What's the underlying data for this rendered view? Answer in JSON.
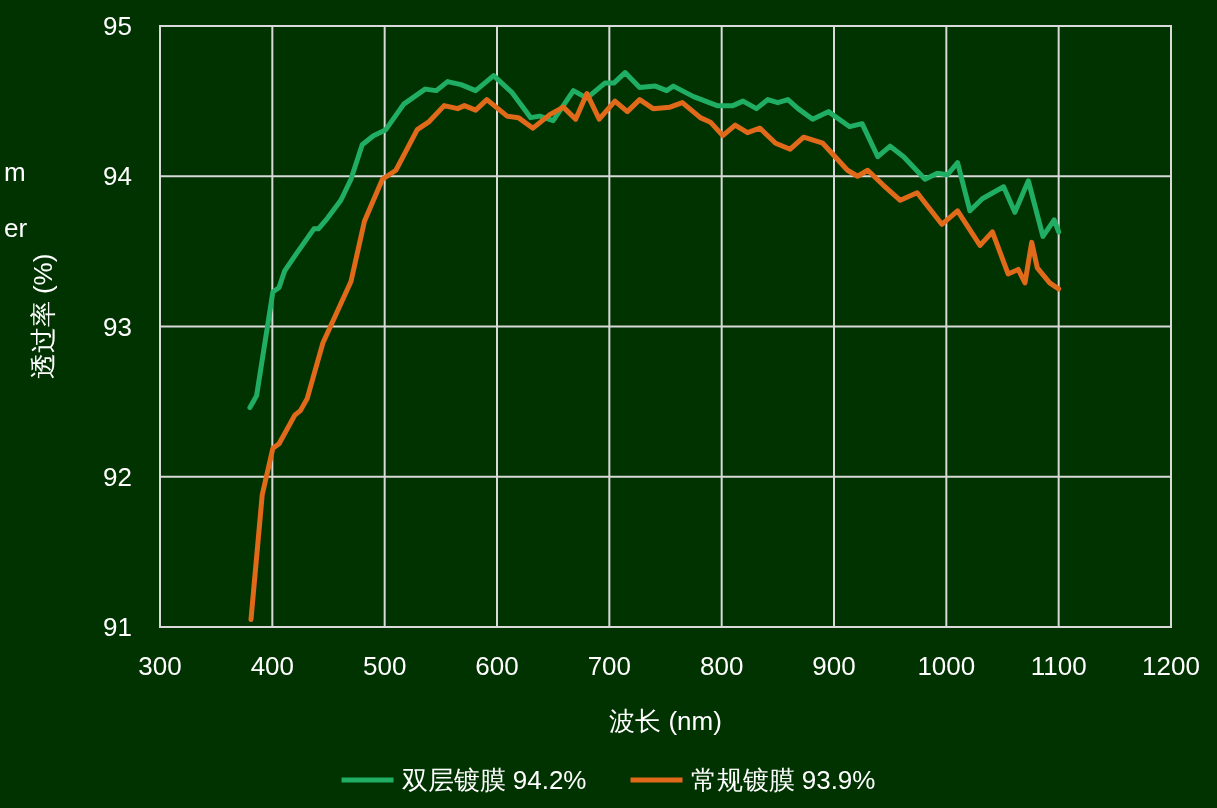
{
  "chart_data": {
    "type": "line",
    "xlabel": "波长 (nm)",
    "ylabel": "透过率 (%)",
    "annotations": [
      "m",
      "er"
    ],
    "xlim": [
      300,
      1200
    ],
    "xticks": [
      300,
      400,
      500,
      600,
      700,
      800,
      900,
      1000,
      1100,
      1200
    ],
    "ylim": [
      91,
      95
    ],
    "yticks": [
      91,
      92,
      93,
      94,
      95
    ],
    "grid": true,
    "legend": "bottom",
    "marker": "none",
    "line_style": "solid",
    "series": [
      {
        "name": "双层镀膜 94.2%",
        "color": "#1fae63",
        "x": [
          380,
          386,
          400.5,
          406,
          411,
          421,
          437,
          441,
          449,
          461,
          470,
          480,
          490,
          501,
          517,
          536,
          546,
          556,
          568,
          581,
          597,
          613,
          630,
          638,
          650,
          668,
          680,
          696,
          704,
          714,
          727,
          741,
          751,
          757,
          775,
          796,
          810,
          819,
          831,
          841,
          850,
          859,
          868,
          881,
          895,
          914,
          925,
          939,
          950,
          962,
          981,
          992,
          1001,
          1010,
          1021,
          1032,
          1051,
          1061,
          1073,
          1086,
          1096,
          1100
        ],
        "values": [
          92.46,
          92.54,
          93.23,
          93.26,
          93.37,
          93.48,
          93.65,
          93.65,
          93.72,
          93.84,
          93.98,
          94.21,
          94.27,
          94.31,
          94.48,
          94.58,
          94.57,
          94.63,
          94.61,
          94.57,
          94.67,
          94.56,
          94.39,
          94.4,
          94.37,
          94.57,
          94.52,
          94.62,
          94.62,
          94.69,
          94.59,
          94.6,
          94.57,
          94.6,
          94.53,
          94.47,
          94.47,
          94.5,
          94.45,
          94.51,
          94.49,
          94.51,
          94.45,
          94.38,
          94.43,
          94.33,
          94.35,
          94.13,
          94.2,
          94.13,
          93.98,
          94.02,
          94.01,
          94.09,
          93.77,
          93.85,
          93.93,
          93.76,
          93.97,
          93.6,
          93.71,
          93.63
        ]
      },
      {
        "name": "常规镀膜 93.9%",
        "color": "#e06a1a",
        "x": [
          381,
          391,
          400.5,
          406,
          420,
          425,
          431,
          445,
          470,
          482,
          498,
          510,
          529,
          539,
          553,
          565,
          571,
          581,
          591,
          609,
          619,
          632,
          647,
          659,
          670,
          680,
          691,
          705,
          716,
          727,
          739,
          754,
          765,
          781,
          790,
          801,
          812,
          823,
          834,
          848,
          861,
          873,
          890,
          912,
          921,
          930,
          944,
          959,
          974,
          996,
          1010,
          1030,
          1041,
          1055,
          1064,
          1070,
          1076,
          1081,
          1092,
          1100
        ],
        "values": [
          91.05,
          91.88,
          92.19,
          92.22,
          92.41,
          92.44,
          92.52,
          92.89,
          93.3,
          93.7,
          93.98,
          94.04,
          94.31,
          94.36,
          94.47,
          94.45,
          94.47,
          94.44,
          94.51,
          94.4,
          94.39,
          94.32,
          94.41,
          94.46,
          94.38,
          94.55,
          94.38,
          94.5,
          94.43,
          94.51,
          94.45,
          94.46,
          94.49,
          94.39,
          94.36,
          94.27,
          94.34,
          94.29,
          94.32,
          94.22,
          94.18,
          94.26,
          94.22,
          94.04,
          94.0,
          94.04,
          93.94,
          93.84,
          93.89,
          93.68,
          93.77,
          93.54,
          93.63,
          93.35,
          93.38,
          93.29,
          93.56,
          93.39,
          93.29,
          93.25
        ]
      }
    ]
  }
}
